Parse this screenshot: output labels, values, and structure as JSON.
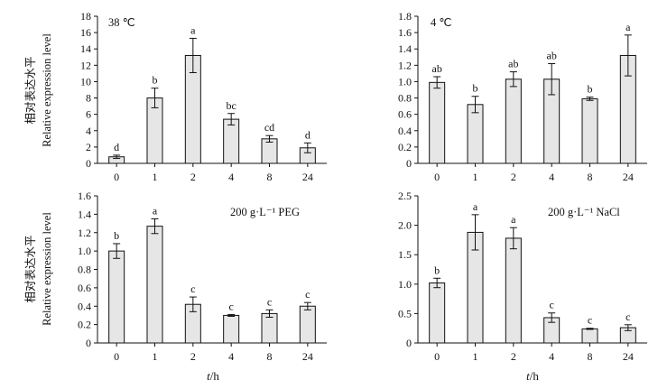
{
  "chart_data": [
    {
      "type": "bar",
      "label": "38 ℃",
      "categories": [
        "0",
        "1",
        "2",
        "4",
        "8",
        "24"
      ],
      "values": [
        0.8,
        8.0,
        13.2,
        5.4,
        3.0,
        1.9
      ],
      "errors": [
        0.2,
        1.2,
        2.1,
        0.7,
        0.4,
        0.6
      ],
      "significance": [
        "d",
        "b",
        "a",
        "bc",
        "cd",
        "d"
      ],
      "ylim": [
        0,
        18
      ],
      "yticks": [
        "0",
        "2",
        "4",
        "6",
        "8",
        "10",
        "12",
        "14",
        "16",
        "18"
      ]
    },
    {
      "type": "bar",
      "label": "4 ℃",
      "categories": [
        "0",
        "1",
        "2",
        "4",
        "8",
        "24"
      ],
      "values": [
        0.99,
        0.72,
        1.03,
        1.03,
        0.79,
        1.32
      ],
      "errors": [
        0.07,
        0.1,
        0.09,
        0.19,
        0.02,
        0.25
      ],
      "significance": [
        "ab",
        "b",
        "ab",
        "ab",
        "b",
        "a"
      ],
      "ylim": [
        0,
        1.8
      ],
      "yticks": [
        "0",
        "0.2",
        "0.4",
        "0.6",
        "0.8",
        "1.0",
        "1.2",
        "1.4",
        "1.6",
        "1.8"
      ]
    },
    {
      "type": "bar",
      "label": "200 g·L⁻¹ PEG",
      "categories": [
        "0",
        "1",
        "2",
        "4",
        "8",
        "24"
      ],
      "values": [
        1.0,
        1.27,
        0.42,
        0.3,
        0.32,
        0.4
      ],
      "errors": [
        0.08,
        0.08,
        0.08,
        0.01,
        0.04,
        0.04
      ],
      "significance": [
        "b",
        "a",
        "c",
        "c",
        "c",
        "c"
      ],
      "ylim": [
        0,
        1.6
      ],
      "yticks": [
        "0",
        "0.2",
        "0.4",
        "0.6",
        "0.8",
        "1.0",
        "1.2",
        "1.4",
        "1.6"
      ]
    },
    {
      "type": "bar",
      "label": "200 g·L⁻¹ NaCl",
      "categories": [
        "0",
        "1",
        "2",
        "4",
        "8",
        "24"
      ],
      "values": [
        1.02,
        1.88,
        1.78,
        0.43,
        0.24,
        0.26
      ],
      "errors": [
        0.08,
        0.3,
        0.18,
        0.08,
        0.01,
        0.05
      ],
      "significance": [
        "b",
        "a",
        "a",
        "c",
        "c",
        "c"
      ],
      "ylim": [
        0,
        2.5
      ],
      "yticks": [
        "0",
        "0.5",
        "1.0",
        "1.5",
        "2.0",
        "2.5"
      ]
    }
  ],
  "ylabel_zh": "相对表达水平",
  "ylabel_en": "Relative expression level",
  "xlabel_italic": "t",
  "xlabel_unit": "/h"
}
